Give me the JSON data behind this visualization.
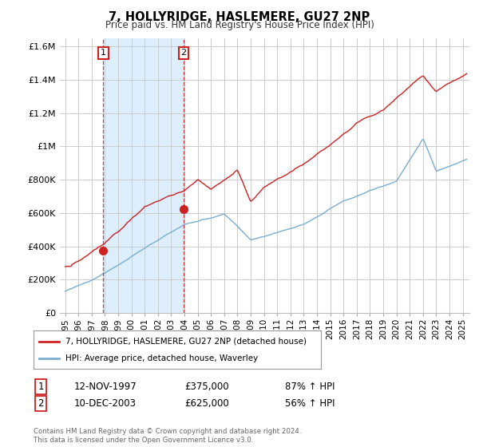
{
  "title": "7, HOLLYRIDGE, HASLEMERE, GU27 2NP",
  "subtitle": "Price paid vs. HM Land Registry's House Price Index (HPI)",
  "legend_line1": "7, HOLLYRIDGE, HASLEMERE, GU27 2NP (detached house)",
  "legend_line2": "HPI: Average price, detached house, Waverley",
  "transaction1_date": "12-NOV-1997",
  "transaction1_price": "£375,000",
  "transaction1_hpi": "87% ↑ HPI",
  "transaction1_year": 1997.87,
  "transaction1_value": 375000,
  "transaction2_date": "10-DEC-2003",
  "transaction2_price": "£625,000",
  "transaction2_hpi": "56% ↑ HPI",
  "transaction2_year": 2003.94,
  "transaction2_value": 625000,
  "red_line_color": "#cc2222",
  "blue_line_color": "#7aadcf",
  "shade_color": "#ddeeff",
  "background_color": "#ffffff",
  "grid_color": "#cccccc",
  "footer_text": "Contains HM Land Registry data © Crown copyright and database right 2024.\nThis data is licensed under the Open Government Licence v3.0.",
  "ylim": [
    0,
    1650000
  ],
  "xlim_start": 1994.6,
  "xlim_end": 2025.5,
  "yticks": [
    0,
    200000,
    400000,
    600000,
    800000,
    1000000,
    1200000,
    1400000,
    1600000
  ],
  "ytick_labels": [
    "£0",
    "£200K",
    "£400K",
    "£600K",
    "£800K",
    "£1M",
    "£1.2M",
    "£1.4M",
    "£1.6M"
  ]
}
